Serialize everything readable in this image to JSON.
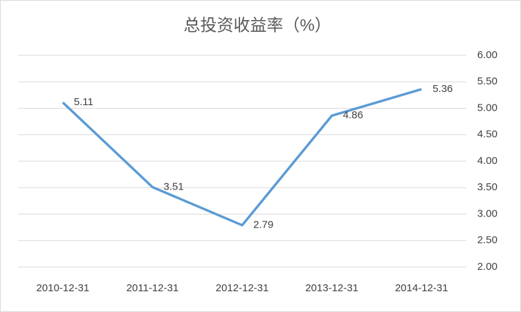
{
  "chart_data": {
    "type": "line",
    "title": "总投资收益率（%）",
    "categories": [
      "2010-12-31",
      "2011-12-31",
      "2012-12-31",
      "2013-12-31",
      "2014-12-31"
    ],
    "series": [
      {
        "name": "总投资收益率",
        "color": "#5b9bd5",
        "values": [
          5.11,
          3.51,
          2.79,
          4.86,
          5.36
        ]
      }
    ],
    "ylim": [
      2,
      6
    ],
    "yticks": [
      {
        "value": 2,
        "label": "2.00"
      },
      {
        "value": 2.5,
        "label": "2.50"
      },
      {
        "value": 3,
        "label": "3.00"
      },
      {
        "value": 3.5,
        "label": "3.50"
      },
      {
        "value": 4,
        "label": "4.00"
      },
      {
        "value": 4.5,
        "label": "4.50"
      },
      {
        "value": 5,
        "label": "5.00"
      },
      {
        "value": 5.5,
        "label": "5.50"
      },
      {
        "value": 6,
        "label": "6.00"
      }
    ],
    "y_axis_side": "right",
    "grid": true
  }
}
